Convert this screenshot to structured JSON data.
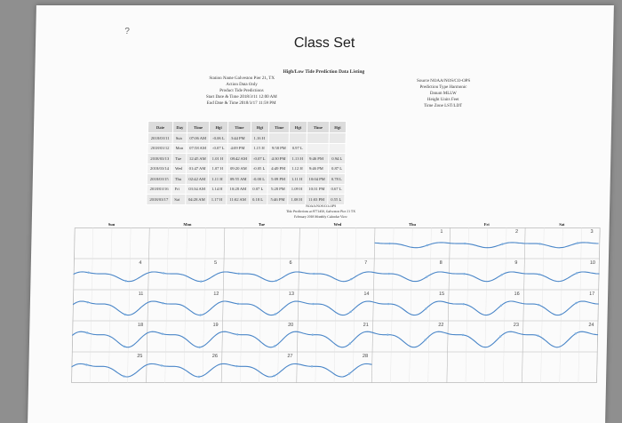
{
  "page": {
    "mark": "?",
    "title": "Class Set"
  },
  "report": {
    "title": "High/Low Tide Prediction Data Listing",
    "station": "Station Name Galveston Pier 21, TX",
    "action": "Action Data Only",
    "product": "Product Tide Predictions",
    "start": "Start Date & Time 2018/3/11 12:00 AM",
    "end": "End Date & Time 2018/3/17 11:59 PM",
    "source": "Source NOAA/NOS/CO-OPS",
    "prediction_type": "Prediction Type Harmonic",
    "datum": "Datum MLLW",
    "height_units": "Height Units Feet",
    "time_zone": "Time Zone LST/LDT"
  },
  "table": {
    "headers": [
      "Date",
      "Day",
      "Time",
      "Hgt",
      "Time",
      "Hgt",
      "Time",
      "Hgt",
      "Time",
      "Hgt"
    ],
    "rows": [
      [
        "2018/03/11",
        "Sun",
        "07:06 AM",
        "-0.06 L",
        "3:44 PM",
        "1.16 H",
        "",
        "",
        "",
        ""
      ],
      [
        "2018/03/12",
        "Mon",
        "07:58 AM",
        "-0.07 L",
        "4:09 PM",
        "1.15 H",
        "9:58 PM",
        "0.97 L",
        "",
        ""
      ],
      [
        "2018/03/13",
        "Tue",
        "12:45 AM",
        "1.01 H",
        "08:42 AM",
        "-0.07 L",
        "4:30 PM",
        "1.13 H",
        "9:46 PM",
        "0.94 L"
      ],
      [
        "2018/03/14",
        "Wed",
        "01:47 AM",
        "1.07 H",
        "09:20 AM",
        "-0.05 L",
        "4:49 PM",
        "1.12 H",
        "9:46 PM",
        "0.87 L"
      ],
      [
        "2018/03/15",
        "Thu",
        "02:42 AM",
        "1.11 H",
        "09:55 AM",
        "-0.00 L",
        "5:09 PM",
        "1.11 H",
        "10:04 PM",
        "0.78 L"
      ],
      [
        "2018/03/16",
        "Fri",
        "03:34 AM",
        "1.14 H",
        "10:28 AM",
        "0.07 L",
        "5:28 PM",
        "1.09 H",
        "10:31 PM",
        "0.67 L"
      ],
      [
        "2018/03/17",
        "Sat",
        "04:28 AM",
        "1.17 H",
        "11:02 AM",
        "0.18 L",
        "5:46 PM",
        "1.08 H",
        "11:03 PM",
        "0.55 L"
      ]
    ]
  },
  "calendar": {
    "source": "NOAA/NOS/CO-OPS",
    "caption": "Tide Predictions at 8771450, Galveston Pier 21 TX",
    "subcaption": "February 2018 Monthly Calendar View",
    "days_of_week": [
      "Sun",
      "Mon",
      "Tue",
      "Wed",
      "Thu",
      "Fri",
      "Sat"
    ],
    "day_numbers": [
      [
        "",
        "",
        "",
        "",
        "1",
        "2",
        "3"
      ],
      [
        "4",
        "5",
        "6",
        "7",
        "8",
        "9",
        "10"
      ],
      [
        "11",
        "12",
        "13",
        "14",
        "15",
        "16",
        "17"
      ],
      [
        "18",
        "19",
        "20",
        "21",
        "22",
        "23",
        "24"
      ],
      [
        "25",
        "26",
        "27",
        "28",
        "",
        "",
        ""
      ]
    ],
    "colors": {
      "curve": "#4a86c8",
      "grid": "#b9b9b9",
      "points": "#7fb0e0"
    }
  }
}
